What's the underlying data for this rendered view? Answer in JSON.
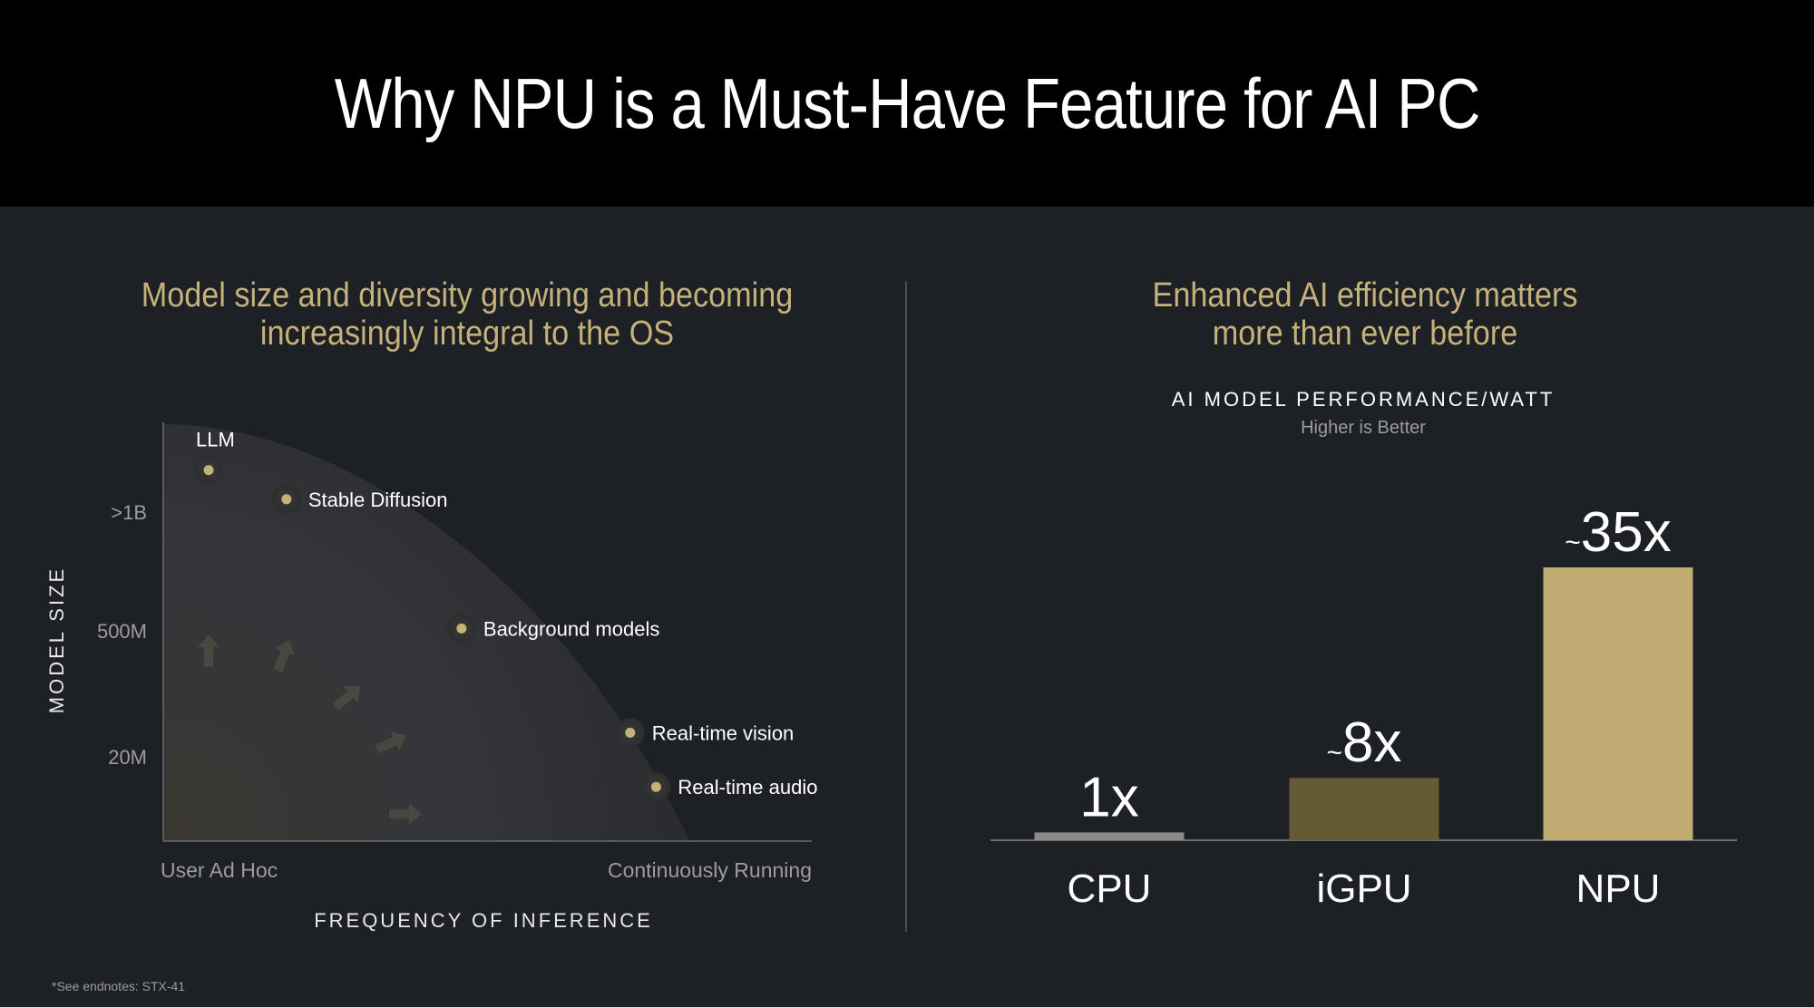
{
  "title": "Why NPU is a Must-Have Feature for AI PC",
  "left_panel": {
    "subtitle_lines": [
      "Model size and diversity growing and becoming",
      "increasingly integral to the OS"
    ]
  },
  "right_panel": {
    "subtitle_lines": [
      "Enhanced AI efficiency matters",
      "more than ever before"
    ]
  },
  "footnote": "*See endnotes: STX-41",
  "colors": {
    "accent_gold": "#c5b27a",
    "cpu_bar": "#8a8a8a",
    "igpu_bar": "#645a33",
    "npu_bar": "#c0ac72",
    "background": "#1d2024",
    "header": "#000000"
  },
  "chart_data": [
    {
      "type": "scatter",
      "xlabel": "FREQUENCY OF INFERENCE",
      "ylabel": "MODEL SIZE",
      "x_tick_labels": [
        "User Ad Hoc",
        "Continuously Running"
      ],
      "y_tick_labels": [
        "20M",
        "500M",
        ">1B"
      ],
      "x_scale": "qualitative 0–1",
      "y_scale": "qualitative 0–1",
      "points": [
        {
          "label": "LLM",
          "x": 0.07,
          "y": 0.89
        },
        {
          "label": "Stable Diffusion",
          "x": 0.19,
          "y": 0.82
        },
        {
          "label": "Background models",
          "x": 0.46,
          "y": 0.51
        },
        {
          "label": "Real-time vision",
          "x": 0.72,
          "y": 0.26
        },
        {
          "label": "Real-time audio",
          "x": 0.76,
          "y": 0.13
        }
      ],
      "grid": false
    },
    {
      "type": "bar",
      "title": "AI MODEL PERFORMANCE/WATT",
      "subtitle": "Higher is Better",
      "categories": [
        "CPU",
        "iGPU",
        "NPU"
      ],
      "values": [
        1,
        8,
        35
      ],
      "value_labels": [
        {
          "prefix": "",
          "value": "1x"
        },
        {
          "prefix": "~",
          "value": "8x"
        },
        {
          "prefix": "~",
          "value": "35x"
        }
      ],
      "ylim": [
        0,
        35
      ],
      "grid": false
    }
  ]
}
